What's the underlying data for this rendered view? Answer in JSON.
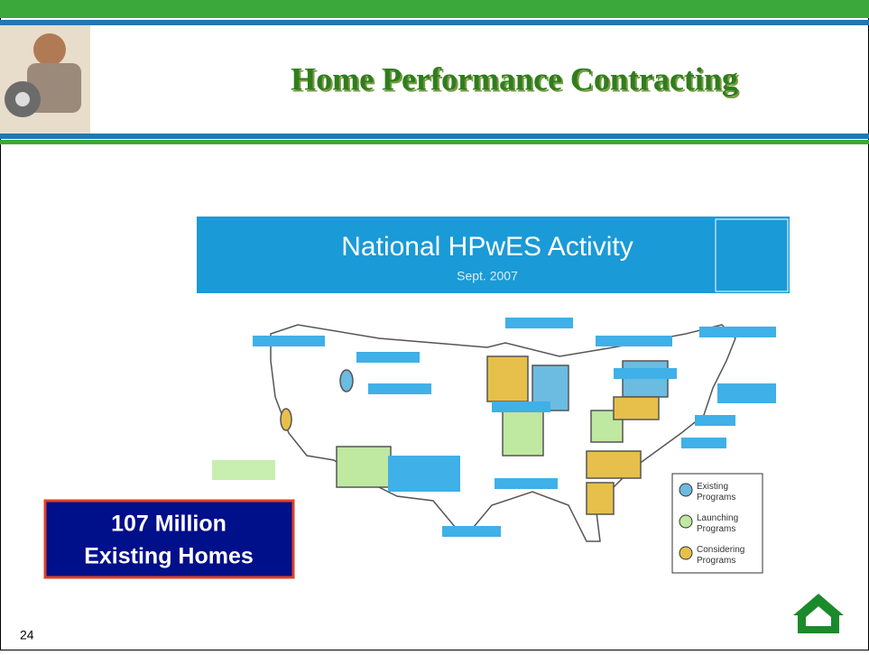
{
  "header": {
    "title": "Home Performance Contracting"
  },
  "figure": {
    "title": "National HPwES Activity",
    "subtitle": "Sept. 2007",
    "legend": [
      {
        "label": "Existing Programs"
      },
      {
        "label": "Launching Programs"
      },
      {
        "label": "Considering Programs"
      }
    ]
  },
  "callout": {
    "line1": "107 Million",
    "line2": "Existing Homes"
  },
  "footer": {
    "page_number": "24"
  }
}
